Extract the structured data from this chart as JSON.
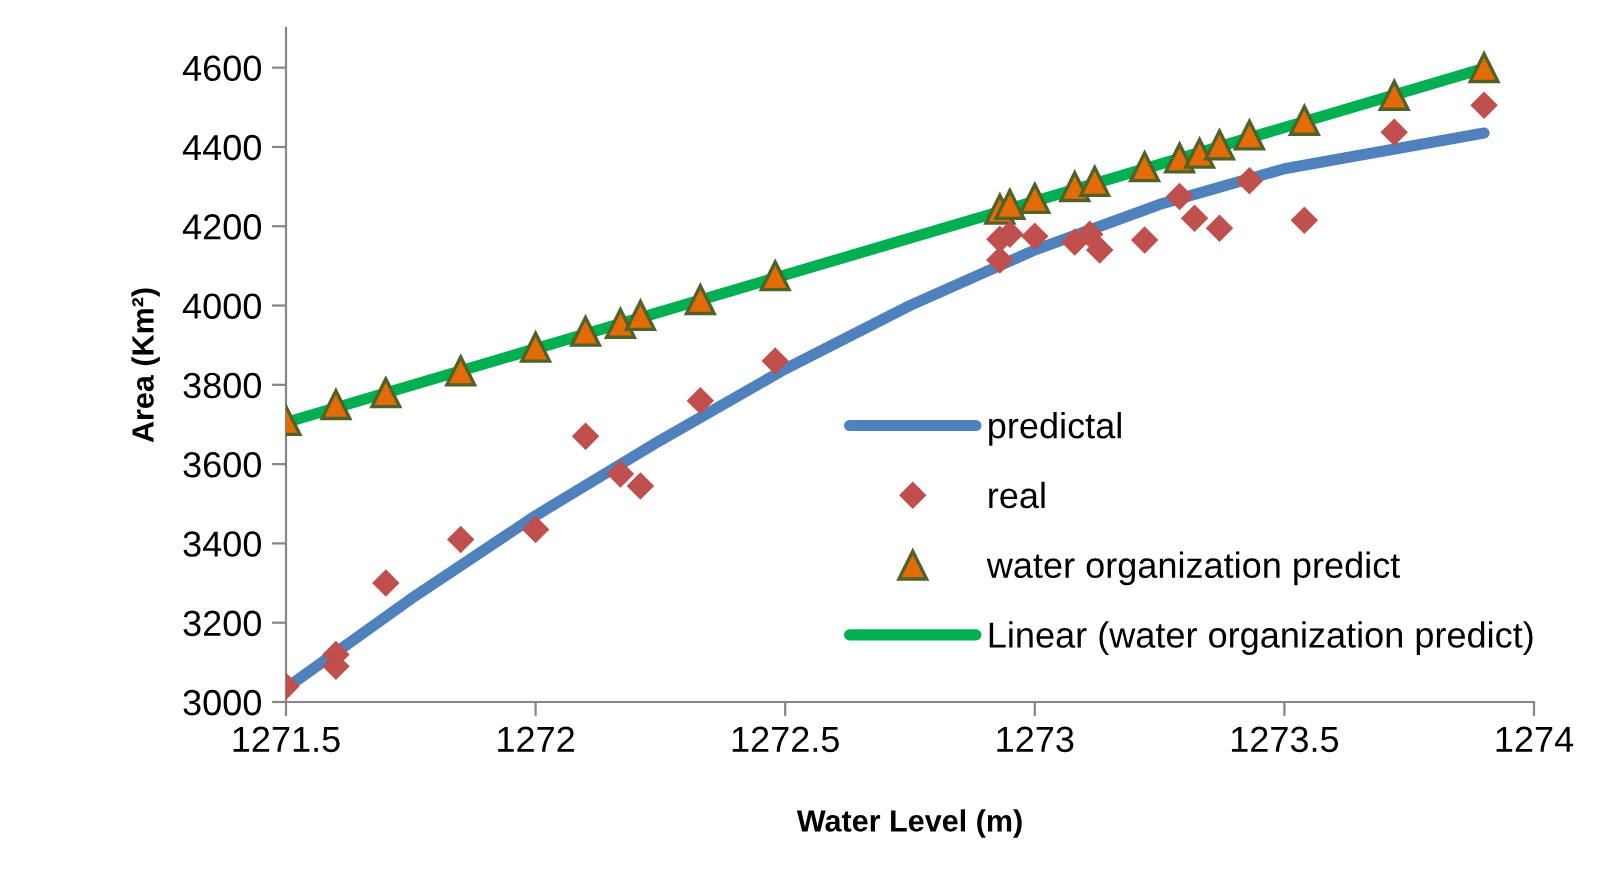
{
  "chart_data": {
    "type": "scatter",
    "xlabel": "Water Level (m)",
    "ylabel": "Area (Km²)",
    "xlim": [
      1271.5,
      1274
    ],
    "xticks": [
      1271.5,
      1272,
      1272.5,
      1273,
      1273.5,
      1274
    ],
    "ylim": [
      3000,
      4700
    ],
    "yticks": [
      3000,
      3200,
      3400,
      3600,
      3800,
      4000,
      4200,
      4400,
      4600
    ],
    "grid": false,
    "legend": "right",
    "series": [
      {
        "name": "predictal",
        "type": "line",
        "color": "#4f81bd",
        "marker": "none",
        "line_style": "solid",
        "x": [
          1271.5,
          1271.75,
          1272,
          1272.25,
          1272.5,
          1272.75,
          1273,
          1273.25,
          1273.5,
          1273.9
        ],
        "values": [
          3035,
          3260,
          3470,
          3660,
          3840,
          4000,
          4140,
          4255,
          4345,
          4435
        ]
      },
      {
        "name": "real",
        "color": "#c0504d",
        "marker": "diamond",
        "x": [
          1271.5,
          1271.6,
          1271.6,
          1271.7,
          1271.85,
          1272.0,
          1272.1,
          1272.17,
          1272.21,
          1272.33,
          1272.48,
          1272.93,
          1272.93,
          1272.95,
          1273.0,
          1273.08,
          1273.11,
          1273.13,
          1273.22,
          1273.29,
          1273.32,
          1273.37,
          1273.43,
          1273.54,
          1273.72,
          1273.9
        ],
        "values": [
          3040,
          3120,
          3090,
          3300,
          3410,
          3435,
          3670,
          3575,
          3545,
          3760,
          3860,
          4167,
          4115,
          4180,
          4175,
          4160,
          4180,
          4140,
          4165,
          4275,
          4220,
          4195,
          4315,
          4215,
          4437,
          4505
        ]
      },
      {
        "name": "water organization predict",
        "color": "#e36c09",
        "marker": "triangle",
        "x": [
          1271.5,
          1271.6,
          1271.7,
          1271.85,
          1272.0,
          1272.1,
          1272.17,
          1272.21,
          1272.33,
          1272.48,
          1272.93,
          1272.95,
          1273.0,
          1273.08,
          1273.12,
          1273.22,
          1273.29,
          1273.33,
          1273.37,
          1273.43,
          1273.54,
          1273.72,
          1273.9
        ],
        "values": [
          3710,
          3750,
          3780,
          3835,
          3895,
          3935,
          3955,
          3975,
          4015,
          4075,
          4243,
          4255,
          4270,
          4300,
          4313,
          4350,
          4372,
          4384,
          4405,
          4430,
          4467,
          4530,
          4600
        ]
      },
      {
        "name": "Linear (water organization predict)",
        "type": "line",
        "color": "#00b050",
        "marker": "none",
        "line_style": "solid",
        "x": [
          1271.5,
          1273.9
        ],
        "values": [
          3705,
          4598
        ]
      }
    ]
  }
}
